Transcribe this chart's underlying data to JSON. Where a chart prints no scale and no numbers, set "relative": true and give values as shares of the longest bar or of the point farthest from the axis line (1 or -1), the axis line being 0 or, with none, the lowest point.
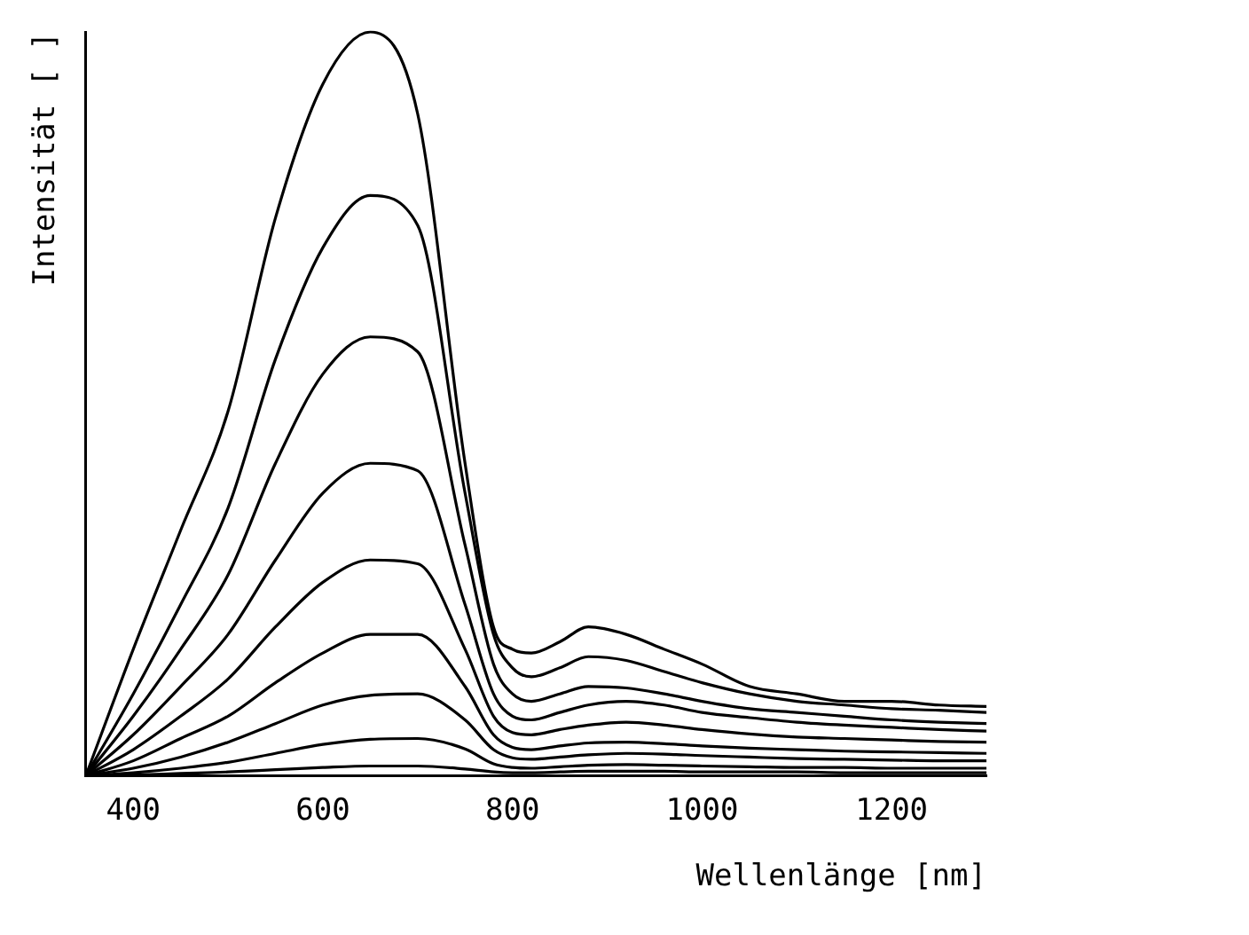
{
  "chart_data": {
    "type": "line",
    "xlabel": "Wellenlänge [nm]",
    "ylabel": "Intensität [ ]",
    "relative": true,
    "grid": false,
    "legend": false,
    "marker": "none",
    "line_style": "solid",
    "x": [
      350,
      400,
      450,
      500,
      550,
      600,
      650,
      700,
      750,
      780,
      800,
      820,
      850,
      880,
      920,
      960,
      1000,
      1050,
      1100,
      1150,
      1200,
      1250,
      1300
    ],
    "xlim": [
      350,
      1300
    ],
    "xticks": [
      400,
      600,
      800,
      1000,
      1200
    ],
    "series": [
      {
        "color": "#000000",
        "values": [
          0,
          0.17,
          0.33,
          0.49,
          0.75,
          0.93,
          1.0,
          0.89,
          0.42,
          0.2,
          0.17,
          0.165,
          0.18,
          0.2,
          0.19,
          0.17,
          0.15,
          0.12,
          0.11,
          0.1,
          0.1,
          0.095,
          0.093
        ]
      },
      {
        "color": "#000000",
        "values": [
          0,
          0.11,
          0.23,
          0.36,
          0.56,
          0.71,
          0.78,
          0.74,
          0.38,
          0.19,
          0.145,
          0.133,
          0.145,
          0.16,
          0.155,
          0.14,
          0.125,
          0.11,
          0.1,
          0.095,
          0.09,
          0.088,
          0.085
        ]
      },
      {
        "color": "#000000",
        "values": [
          0,
          0.08,
          0.17,
          0.27,
          0.42,
          0.54,
          0.59,
          0.57,
          0.31,
          0.15,
          0.11,
          0.1,
          0.11,
          0.12,
          0.118,
          0.11,
          0.1,
          0.09,
          0.085,
          0.08,
          0.075,
          0.072,
          0.07
        ]
      },
      {
        "color": "#000000",
        "values": [
          0,
          0.055,
          0.12,
          0.19,
          0.29,
          0.38,
          0.42,
          0.41,
          0.23,
          0.11,
          0.08,
          0.075,
          0.085,
          0.095,
          0.1,
          0.095,
          0.085,
          0.078,
          0.072,
          0.068,
          0.065,
          0.062,
          0.06
        ]
      },
      {
        "color": "#000000",
        "values": [
          0,
          0.035,
          0.08,
          0.13,
          0.2,
          0.26,
          0.29,
          0.285,
          0.17,
          0.08,
          0.058,
          0.055,
          0.062,
          0.068,
          0.072,
          0.068,
          0.062,
          0.056,
          0.052,
          0.05,
          0.048,
          0.046,
          0.045
        ]
      },
      {
        "color": "#000000",
        "values": [
          0,
          0.02,
          0.05,
          0.08,
          0.125,
          0.165,
          0.19,
          0.19,
          0.12,
          0.055,
          0.038,
          0.035,
          0.04,
          0.044,
          0.045,
          0.043,
          0.04,
          0.037,
          0.035,
          0.033,
          0.032,
          0.031,
          0.03
        ]
      },
      {
        "color": "#000000",
        "values": [
          0,
          0.01,
          0.025,
          0.045,
          0.07,
          0.095,
          0.108,
          0.11,
          0.075,
          0.035,
          0.024,
          0.022,
          0.025,
          0.028,
          0.03,
          0.029,
          0.027,
          0.025,
          0.023,
          0.022,
          0.021,
          0.02,
          0.02
        ]
      },
      {
        "color": "#000000",
        "values": [
          0,
          0.004,
          0.01,
          0.018,
          0.03,
          0.042,
          0.049,
          0.05,
          0.036,
          0.016,
          0.011,
          0.01,
          0.012,
          0.014,
          0.015,
          0.014,
          0.013,
          0.012,
          0.011,
          0.011,
          0.01,
          0.01,
          0.01
        ]
      },
      {
        "color": "#000000",
        "values": [
          0,
          0.001,
          0.003,
          0.005,
          0.008,
          0.011,
          0.013,
          0.013,
          0.009,
          0.005,
          0.004,
          0.004,
          0.005,
          0.006,
          0.006,
          0.006,
          0.005,
          0.005,
          0.005,
          0.004,
          0.004,
          0.004,
          0.004
        ]
      }
    ]
  }
}
